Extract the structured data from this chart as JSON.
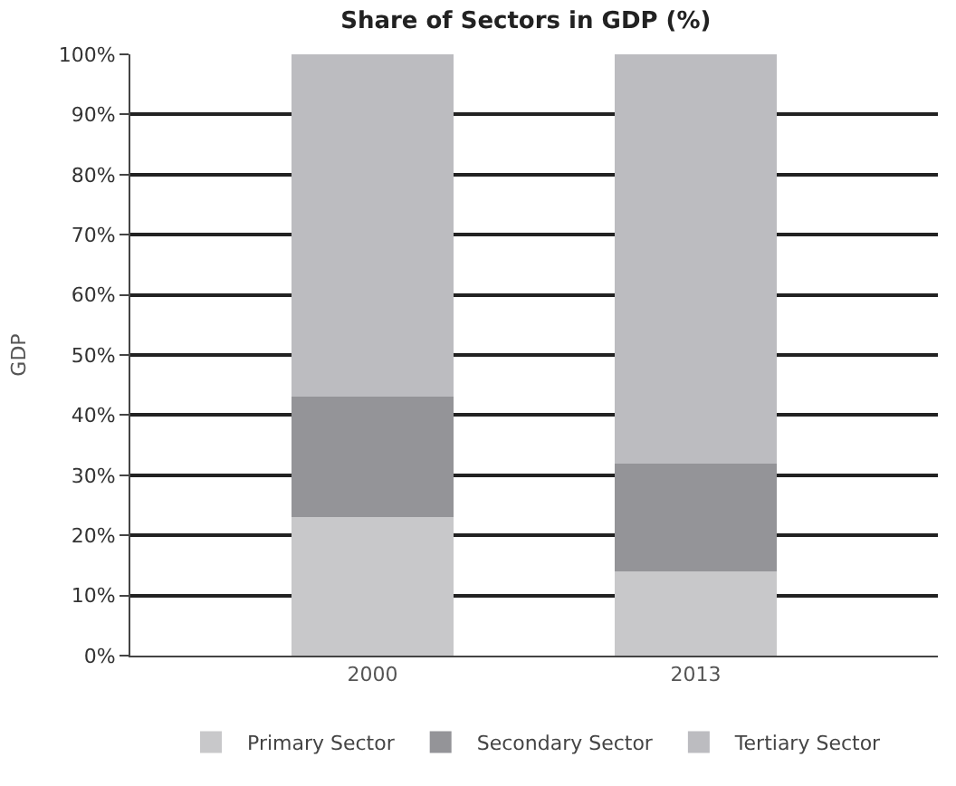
{
  "chart_data": {
    "type": "bar",
    "stacked": true,
    "title": "Share of Sectors in GDP (%)",
    "ylabel": "GDP",
    "categories": [
      "2000",
      "2013"
    ],
    "series": [
      {
        "name": "Primary Sector",
        "color": "#c8c8ca",
        "values": [
          23,
          14
        ]
      },
      {
        "name": "Secondary Sector",
        "color": "#949498",
        "values": [
          20,
          18
        ]
      },
      {
        "name": "Tertiary Sector",
        "color": "#bcbcc0",
        "values": [
          57,
          68
        ]
      }
    ],
    "ylim": [
      0,
      100
    ],
    "yticks": [
      {
        "value": 0,
        "label": "0%"
      },
      {
        "value": 10,
        "label": "10%"
      },
      {
        "value": 20,
        "label": "20%"
      },
      {
        "value": 30,
        "label": "30%"
      },
      {
        "value": 40,
        "label": "40%"
      },
      {
        "value": 50,
        "label": "50%"
      },
      {
        "value": 60,
        "label": "60%"
      },
      {
        "value": 70,
        "label": "70%"
      },
      {
        "value": 80,
        "label": "80%"
      },
      {
        "value": 90,
        "label": "90%"
      },
      {
        "value": 100,
        "label": "100%"
      }
    ],
    "grid": "y",
    "legend": "bottom"
  }
}
